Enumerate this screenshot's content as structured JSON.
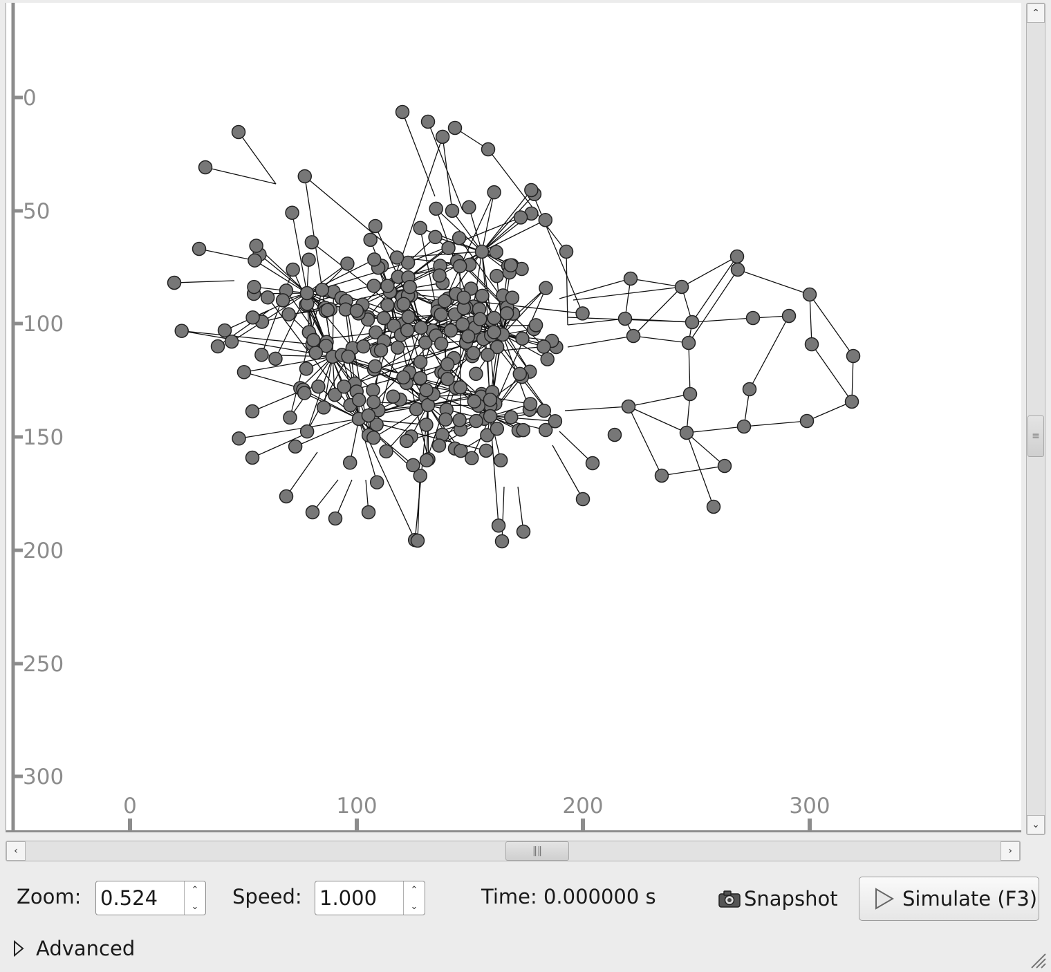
{
  "axes": {
    "x_ticks": [
      "0",
      "100",
      "200",
      "300"
    ],
    "y_ticks": [
      "0",
      "50",
      "100",
      "150",
      "200",
      "250",
      "300"
    ]
  },
  "controls": {
    "zoom_label": "Zoom:",
    "zoom_value": "0.524",
    "speed_label": "Speed:",
    "speed_value": "1.000",
    "time_text": "Time: 0.000000 s",
    "snapshot_label": "Snapshot",
    "simulate_label": "Simulate (F3)",
    "advanced_label": "Advanced"
  },
  "scroll": {
    "horizontal_thumb_position": 0.5,
    "vertical_thumb_position": 0.52
  },
  "colors": {
    "node_fill": "#777777",
    "node_stroke": "#222222",
    "edge": "#111111",
    "axis": "#8c8c8c"
  },
  "graph": {
    "hub_count": 9,
    "peripheral_node_count": 24
  }
}
